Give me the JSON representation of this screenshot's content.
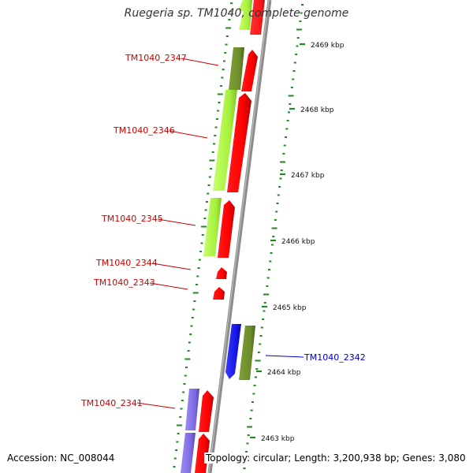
{
  "title": "Ruegeria sp. TM1040, complete genome",
  "footer": {
    "accession": "Accession: NC_008044",
    "summary": "Topology: circular; Length: 3,200,938 bp; Genes: 3,080"
  },
  "colors": {
    "backbone": "#8c8c8c",
    "forward_label": "#cc0000",
    "reverse_label": "#0000cc",
    "cds_forward": "#ff0000",
    "cds_forward_dark": "#bf0000",
    "rna_light": "#a6f03c",
    "rna_olive": "#6b8c2a",
    "reverse_cds": "#1414e6",
    "purple": "#7b68e0",
    "ticks": "#1f8a1f"
  },
  "scale_labels": [
    "2469 kbp",
    "2468 kbp",
    "2467 kbp",
    "2466 kbp",
    "2465 kbp",
    "2464 kbp",
    "2463 kbp"
  ],
  "genes": [
    {
      "name": "TM1040_2347",
      "strand": "forward"
    },
    {
      "name": "TM1040_2346",
      "strand": "forward"
    },
    {
      "name": "TM1040_2345",
      "strand": "forward"
    },
    {
      "name": "TM1040_2344",
      "strand": "forward"
    },
    {
      "name": "TM1040_2343",
      "strand": "forward"
    },
    {
      "name": "TM1040_2342",
      "strand": "reverse"
    },
    {
      "name": "TM1040_2341",
      "strand": "forward"
    }
  ]
}
